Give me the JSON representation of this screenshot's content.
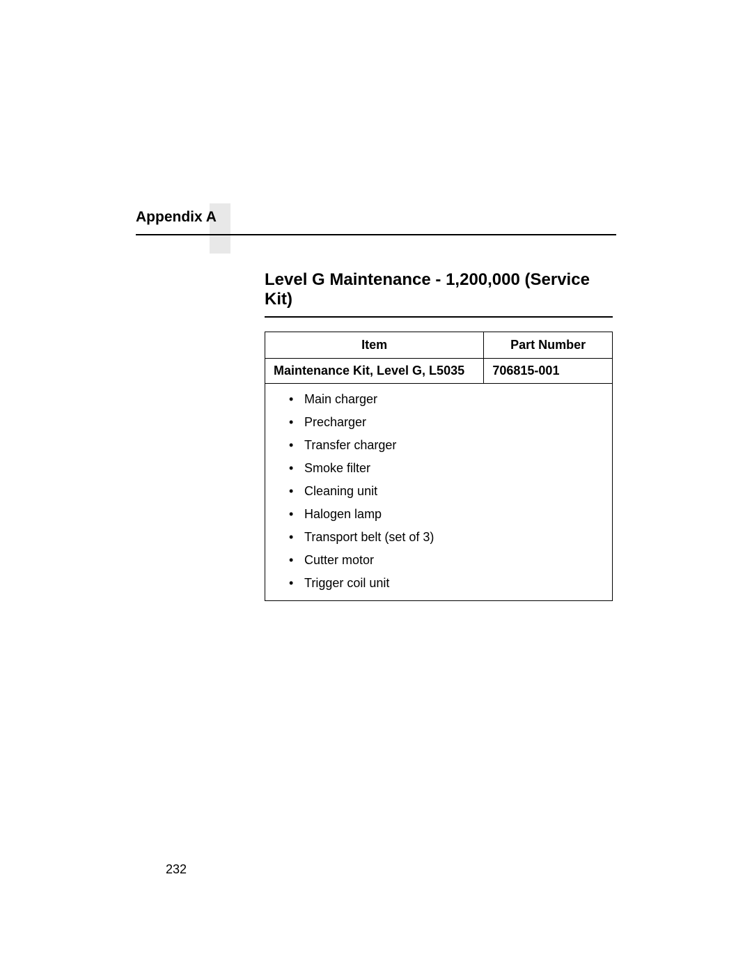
{
  "appendix_label": "Appendix A",
  "section_title": "Level G Maintenance - 1,200,000 (Service Kit)",
  "table": {
    "headers": {
      "item": "Item",
      "part_number": "Part Number"
    },
    "kit_row": {
      "item": "Maintenance Kit, Level G, L5035",
      "part_number": "706815-001"
    },
    "contents": [
      "Main charger",
      "Precharger",
      "Transfer charger",
      "Smoke filter",
      "Cleaning unit",
      "Halogen lamp",
      "Transport belt (set of 3)",
      "Cutter motor",
      "Trigger coil unit"
    ]
  },
  "page_number": "232"
}
